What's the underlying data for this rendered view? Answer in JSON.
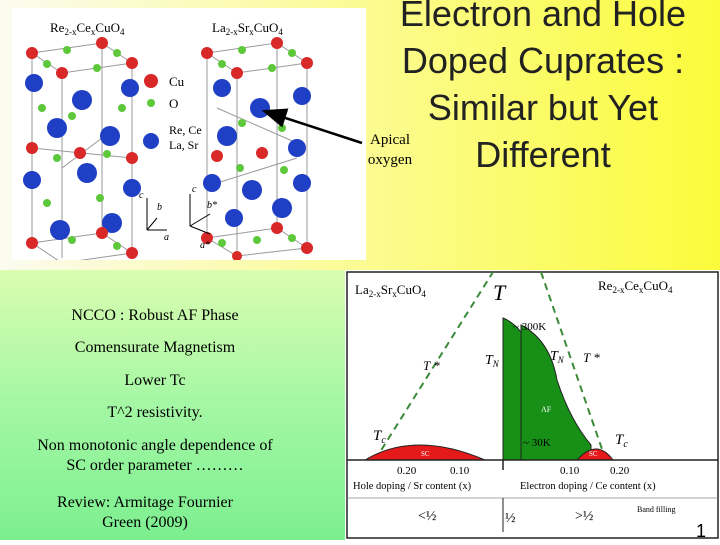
{
  "slide": {
    "title": "Electron and Hole Doped Cuprates : Similar but Yet Different",
    "title_lines": [
      "Electron and Hole",
      "Doped Cuprates :",
      "Similar but  Yet",
      "Different"
    ],
    "apical_label": [
      "Apical",
      "oxygen"
    ],
    "page_number": "1",
    "bullets": [
      [
        "NCCO : Robust AF  Phase"
      ],
      [
        "Comensurate Magnetism"
      ],
      [
        "Lower Tc"
      ],
      [
        "T^2 resistivity."
      ],
      [
        "Non monotonic angle  dependence of",
        "SC order parameter ………"
      ],
      [
        "Review: Armitage Fournier",
        "Green (2009)"
      ]
    ]
  },
  "crystal": {
    "left_formula": [
      "Re",
      "2-x",
      "Ce",
      "x",
      "CuO",
      "4"
    ],
    "right_formula": [
      "La",
      "2-x",
      "Sr",
      "x",
      "CuO",
      "4"
    ],
    "legend": [
      {
        "label": "Cu",
        "color": "#d82828",
        "glyph": "ball"
      },
      {
        "label": "O",
        "color": "#5cc83a",
        "glyph": "ball"
      },
      {
        "label": "Re, Ce",
        "color": "#2040c8",
        "glyph": "ball"
      },
      {
        "label": "La, Sr",
        "color": "#2040c8",
        "glyph": "none"
      }
    ],
    "axes_left": [
      "c",
      "b",
      "a"
    ],
    "axes_right": [
      "c",
      "b*",
      "a*"
    ]
  },
  "phase": {
    "left_compound": [
      "La",
      "2-x",
      "Sr",
      "x",
      "CuO",
      "4"
    ],
    "right_compound": [
      "Re",
      "2-x",
      "Ce",
      "x",
      "CuO",
      "4"
    ],
    "axis_T": "T",
    "label_300K": "~ 300K",
    "label_30K": "~ 30K",
    "label_TN_left": "T",
    "label_TN_right": "T",
    "subscript_N": "N",
    "label_Tstar": "T *",
    "label_Tc": "T",
    "subscript_c": "c",
    "label_AF": "AF",
    "label_SC": "SC",
    "ticks_hole": [
      "0.20",
      "0.10"
    ],
    "ticks_electron": [
      "0.10",
      "0.20"
    ],
    "xlabel_hole": "Hole doping / Sr content (x)",
    "xlabel_electron": "Electron doping / Ce content (x)",
    "band_filling": "Band filling",
    "filling_less": "<",
    "filling_greater": ">",
    "half": "½",
    "colors": {
      "af": "#189018",
      "sc": "#e41a1a",
      "dashed": "#3a8a3a"
    }
  }
}
